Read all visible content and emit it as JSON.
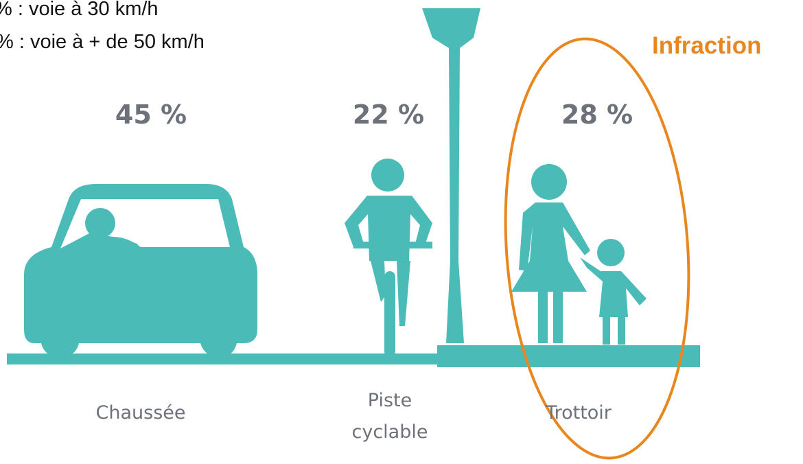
{
  "header": {
    "lines": [
      "% : voie à 30 km/h",
      "% : voie à + de 50 km/h"
    ],
    "flag": "Infraction"
  },
  "zones": [
    {
      "percent": "45 %",
      "name": [
        "Chaussée"
      ]
    },
    {
      "percent": "22 %",
      "name": [
        "Piste",
        "cyclable"
      ]
    },
    {
      "percent": "28 %",
      "name": [
        "Trottoir"
      ]
    }
  ]
}
